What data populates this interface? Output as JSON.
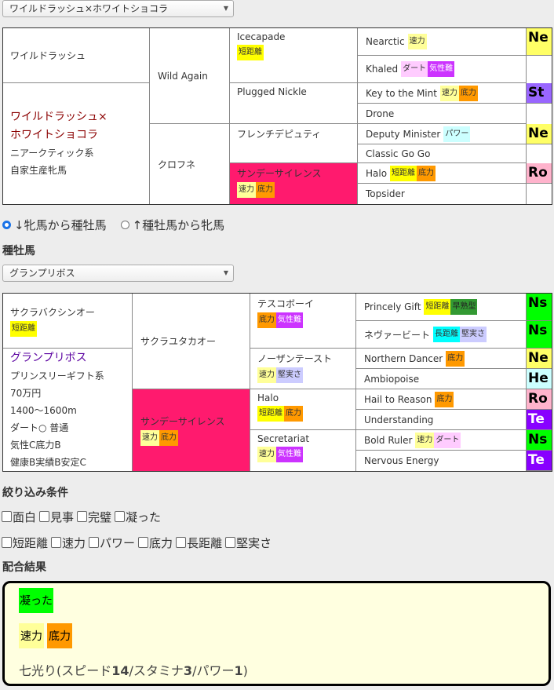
{
  "mare_select": {
    "value": "ワイルドラッシュ×ホワイトショコラ"
  },
  "tag_colors": {
    "速力": "#ffff99",
    "底力": "#ff9900",
    "短距離": "#ffff00",
    "気性難": "#cc33ff",
    "ダート": "#ffccff",
    "パワー": "#ccffff",
    "長距離": "#00ffff",
    "堅実さ": "#ccccff",
    "早熟型": "#339933"
  },
  "badge_colors": {
    "Ne": "#ffff66",
    "St": "#9966ff",
    "Ro": "#ffb3cc",
    "Ns": "#00ff00",
    "He": "#ccffff",
    "Te": "#8800ff"
  },
  "mare_pedigree": {
    "col1_top": {
      "name": "ワイルドラッシュ",
      "tags": []
    },
    "col1_info": {
      "title": [
        "ワイルドラッシュ×",
        "ホワイトショコラ"
      ],
      "lines": [
        "ニアークティック系",
        "自家生産牝馬"
      ]
    },
    "col2": [
      {
        "name": "Wild Again",
        "tags": []
      },
      {
        "name": "クロフネ",
        "tags": []
      }
    ],
    "col3": [
      {
        "name": "Icecapade",
        "tags": [
          "短距離"
        ]
      },
      {
        "name": "Plugged Nickle",
        "tags": []
      },
      {
        "name": "フレンチデピュティ",
        "tags": []
      },
      {
        "name": "サンデーサイレンス",
        "tags": [
          "速力",
          "底力"
        ],
        "highlight": "#ff1a6e"
      }
    ],
    "col4": [
      {
        "name": "Nearctic",
        "tags": [
          "速力"
        ]
      },
      {
        "name": "Khaled",
        "tags": [
          "ダート",
          "気性難"
        ]
      },
      {
        "name": "Key to the Mint",
        "tags": [
          "速力",
          "底力"
        ]
      },
      {
        "name": "Drone",
        "tags": []
      },
      {
        "name": "Deputy Minister",
        "tags": [
          "パワー"
        ]
      },
      {
        "name": "Classic Go Go",
        "tags": []
      },
      {
        "name": "Halo",
        "tags": [
          "短距離",
          "底力"
        ]
      },
      {
        "name": "Topsider",
        "tags": []
      }
    ],
    "badges": [
      "Ne",
      "St",
      "Ne",
      "Ro"
    ]
  },
  "direction": {
    "option1": "↓牝馬から種牡馬",
    "option2": "↑種牡馬から牝馬",
    "selected": 1
  },
  "stallion_heading": "種牡馬",
  "stallion_select": {
    "value": "グランプリボス"
  },
  "stallion_pedigree": {
    "col1_top": {
      "name": "サクラバクシンオー",
      "tags": [
        "短距離"
      ]
    },
    "col1_info": {
      "title": [
        "グランプリボス"
      ],
      "lines": [
        "プリンスリーギフト系",
        "70万円",
        "1400～1600m",
        "ダート○ 普通",
        "気性C底力B",
        "健康B実績B安定C"
      ]
    },
    "col2": [
      {
        "name": "サクラユタカオー",
        "tags": []
      },
      {
        "name": "サンデーサイレンス",
        "tags": [
          "速力",
          "底力"
        ],
        "highlight": "#ff1a6e"
      }
    ],
    "col3": [
      {
        "name": "テスコボーイ",
        "tags": [
          "底力",
          "気性難"
        ]
      },
      {
        "name": "ノーザンテースト",
        "tags": [
          "速力",
          "堅実さ"
        ]
      },
      {
        "name": "Halo",
        "tags": [
          "短距離",
          "底力"
        ]
      },
      {
        "name": "Secretariat",
        "tags": [
          "速力",
          "気性難"
        ]
      }
    ],
    "col4": [
      {
        "name": "Princely Gift",
        "tags": [
          "短距離",
          "早熟型"
        ]
      },
      {
        "name": "ネヴァービート",
        "tags": [
          "長距離",
          "堅実さ"
        ]
      },
      {
        "name": "Northern Dancer",
        "tags": [
          "底力"
        ]
      },
      {
        "name": "Ambiopoise",
        "tags": []
      },
      {
        "name": "Hail to Reason",
        "tags": [
          "底力"
        ]
      },
      {
        "name": "Understanding",
        "tags": []
      },
      {
        "name": "Bold Ruler",
        "tags": [
          "速力",
          "ダート"
        ]
      },
      {
        "name": "Nervous Energy",
        "tags": []
      }
    ],
    "badges": [
      "Ns",
      "Ns",
      "Ne",
      "He",
      "Ro",
      "Te",
      "Ns",
      "Te"
    ]
  },
  "filter": {
    "heading": "絞り込み条件",
    "row1": [
      "面白",
      "見事",
      "完璧",
      "凝った"
    ],
    "row2": [
      "短距離",
      "速力",
      "パワー",
      "底力",
      "長距離",
      "堅実さ"
    ]
  },
  "result": {
    "heading": "配合結果",
    "rank": "凝った",
    "rank_color": "#00ff00",
    "tags": [
      "速力",
      "底力"
    ],
    "summary_prefix": "七光り(スピード",
    "speed": "14",
    "stamina_label": "/スタミナ",
    "stamina": "3",
    "power_label": "/パワー",
    "power": "1",
    "summary_suffix": ")"
  }
}
